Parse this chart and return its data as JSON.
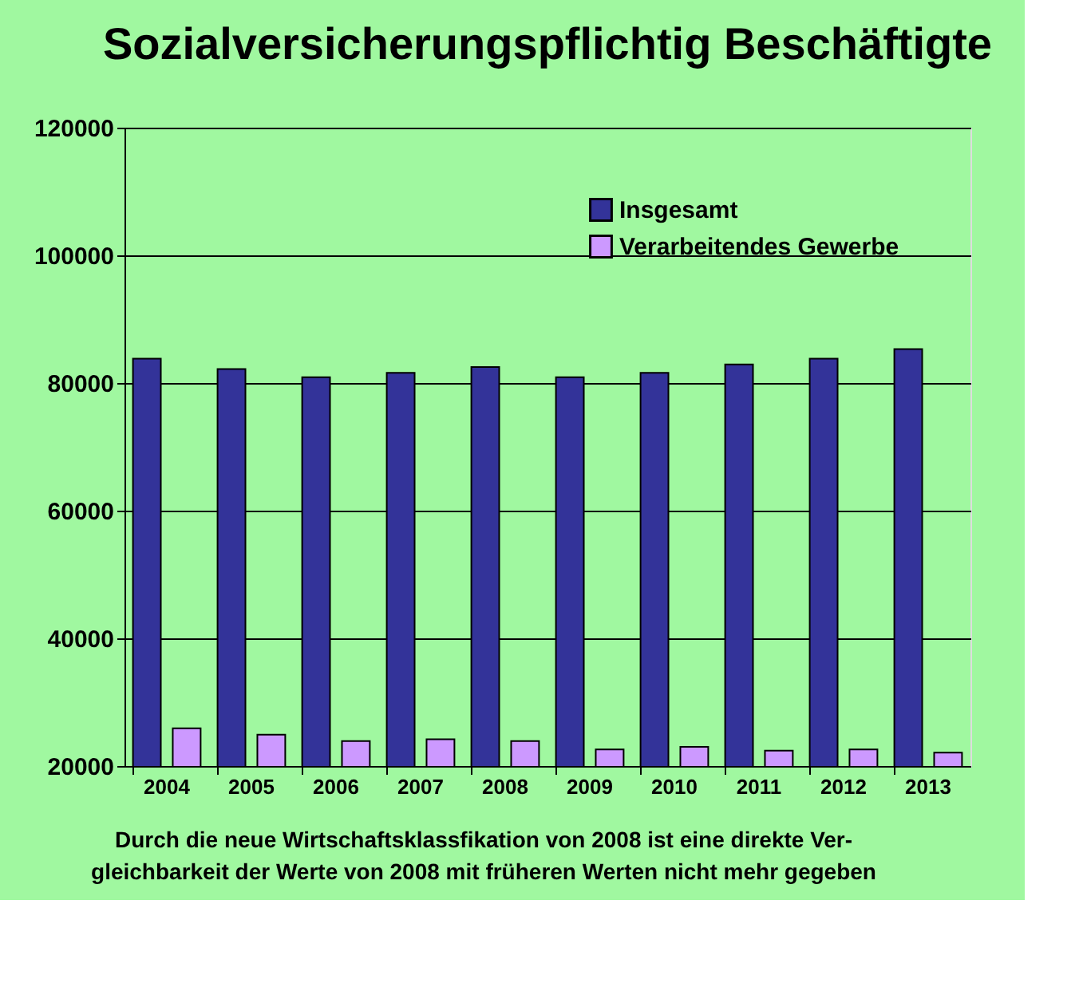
{
  "chart_data": {
    "type": "bar",
    "title": "Sozialversicherungspflichtig Beschäftigte",
    "categories": [
      "2004",
      "2005",
      "2006",
      "2007",
      "2008",
      "2009",
      "2010",
      "2011",
      "2012",
      "2013"
    ],
    "series": [
      {
        "name": "Insgesamt",
        "color": "#333399",
        "values": [
          83800,
          82200,
          80900,
          81600,
          82500,
          80900,
          81600,
          82900,
          83800,
          85300
        ]
      },
      {
        "name": "Verarbeitendes Gewerbe",
        "color": "#cc99ff",
        "values": [
          25900,
          24900,
          23900,
          24200,
          23900,
          22600,
          23000,
          22400,
          22600,
          22100
        ]
      }
    ],
    "ylim": [
      20000,
      120000
    ],
    "yticks": [
      20000,
      40000,
      60000,
      80000,
      100000,
      120000
    ],
    "grid": "y",
    "legend": "top right",
    "annotations": [
      "Durch die neue Wirtschaftsklassfikation von 2008 ist eine direkte Ver-\ngleichbarkeit der Werte von 2008 mit früheren Werten nicht mehr gegeben"
    ]
  }
}
